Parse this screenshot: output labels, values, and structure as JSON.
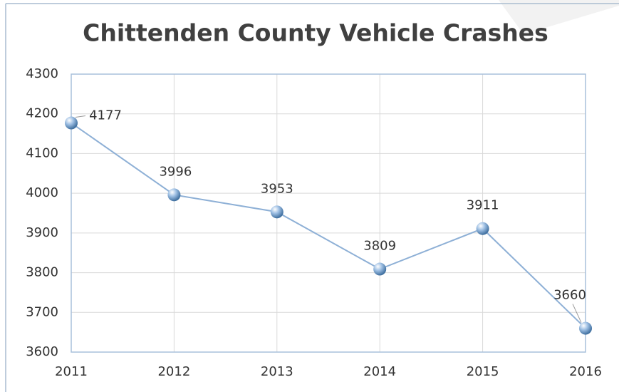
{
  "chart_data": {
    "type": "line",
    "title": "Chittenden County Vehicle Crashes",
    "categories": [
      "2011",
      "2012",
      "2013",
      "2014",
      "2015",
      "2016"
    ],
    "series": [
      {
        "name": "Vehicle Crashes",
        "color": "#8eb0d6",
        "values": [
          4177,
          3996,
          3953,
          3809,
          3911,
          3660
        ]
      }
    ],
    "ylim": [
      3600,
      4300
    ],
    "yticks": [
      3600,
      3700,
      3800,
      3900,
      4000,
      4100,
      4200,
      4300
    ],
    "grid": true,
    "data_labels": true
  }
}
